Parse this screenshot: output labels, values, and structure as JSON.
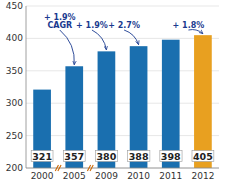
{
  "chart_data": {
    "type": "bar",
    "categories": [
      "2000",
      "2005",
      "2009",
      "2010",
      "2011",
      "2012"
    ],
    "values": [
      321,
      357,
      380,
      388,
      398,
      405
    ],
    "colors": [
      "#1a6faf",
      "#1a6faf",
      "#1a6faf",
      "#1a6faf",
      "#1a6faf",
      "#e8a020"
    ],
    "ylim": [
      200,
      450
    ],
    "yticks": [
      200,
      250,
      300,
      350,
      400,
      450
    ],
    "grid": true,
    "data_labels": true,
    "annotations": [
      {
        "text": "+ 1.9%\nCAGR",
        "category": "2005"
      },
      {
        "text": "+ 1.9%",
        "category": "2009"
      },
      {
        "text": "+ 2.7%",
        "category": "2010"
      },
      {
        "text": "+ 1.8%",
        "category": "2012"
      }
    ]
  }
}
